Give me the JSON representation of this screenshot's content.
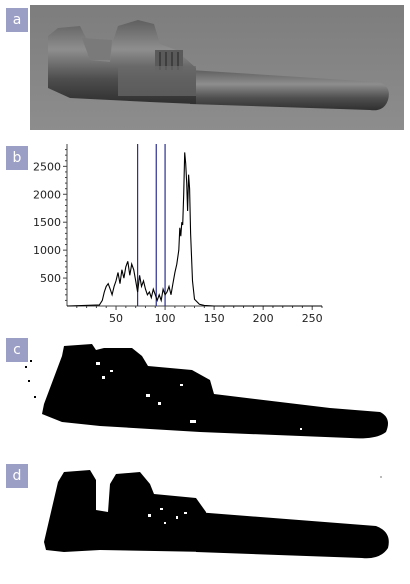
{
  "panels": [
    {
      "label": "a",
      "content": "photograph of an adjustable wrench on a gray background"
    },
    {
      "label": "b",
      "content": "intensity histogram"
    },
    {
      "label": "c",
      "content": "thresholded binary image of the wrench"
    },
    {
      "label": "d",
      "content": "cleaned binary image of the wrench"
    }
  ],
  "chart_data": {
    "type": "line",
    "title": "",
    "xlabel": "",
    "ylabel": "",
    "xlim": [
      0,
      260
    ],
    "ylim": [
      0,
      2900
    ],
    "x_ticks": [
      50,
      100,
      150,
      200,
      250
    ],
    "y_ticks": [
      500,
      1000,
      1500,
      2000,
      2500
    ],
    "vertical_lines": [
      72,
      91,
      100
    ],
    "series": [
      {
        "name": "",
        "x": [
          0,
          33,
          36,
          38,
          40,
          42,
          44,
          46,
          48,
          50,
          52,
          54,
          56,
          58,
          60,
          62,
          64,
          66,
          68,
          70,
          72,
          74,
          76,
          78,
          80,
          82,
          84,
          86,
          88,
          90,
          92,
          94,
          96,
          98,
          100,
          102,
          104,
          106,
          108,
          110,
          112,
          114,
          115,
          116,
          117,
          118,
          119,
          120,
          121,
          122,
          123,
          124,
          125,
          126,
          128,
          130,
          135,
          140,
          150,
          180,
          220,
          260
        ],
        "y": [
          0,
          20,
          100,
          250,
          350,
          400,
          300,
          200,
          350,
          450,
          600,
          400,
          650,
          500,
          700,
          800,
          550,
          750,
          650,
          450,
          250,
          550,
          350,
          450,
          300,
          200,
          250,
          150,
          300,
          200,
          100,
          200,
          100,
          300,
          200,
          250,
          350,
          200,
          400,
          600,
          750,
          1000,
          1400,
          1250,
          1500,
          1450,
          2000,
          2750,
          2550,
          2200,
          1700,
          2350,
          2100,
          1300,
          450,
          120,
          30,
          10,
          0,
          0,
          0,
          0
        ]
      }
    ]
  }
}
